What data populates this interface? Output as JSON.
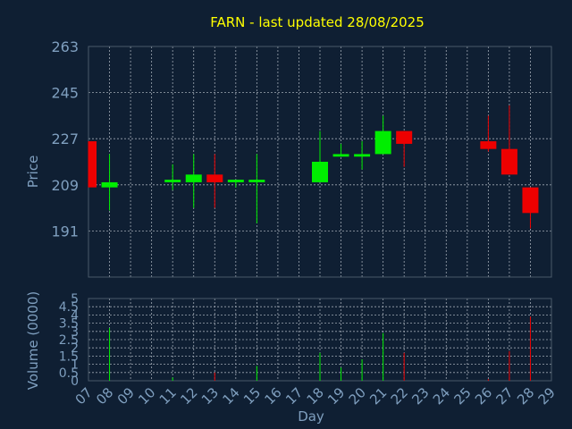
{
  "chart_data": {
    "type": "candlestick",
    "title": "FARN - last updated 28/08/2025",
    "xlabel": "Day",
    "ylabel": "Price",
    "volume_label": "Volume (0000)",
    "x_ticks": [
      "07",
      "08",
      "09",
      "10",
      "11",
      "12",
      "13",
      "14",
      "15",
      "16",
      "17",
      "18",
      "19",
      "20",
      "21",
      "22",
      "23",
      "24",
      "25",
      "26",
      "27",
      "28",
      "29"
    ],
    "price_ticks": [
      191,
      209,
      227,
      245,
      263
    ],
    "price_range": [
      173,
      263
    ],
    "volume_ticks": [
      "0",
      "0.5",
      "1",
      "1.5",
      "2",
      "2.5",
      "3",
      "3.5",
      "4",
      "4.5",
      "5"
    ],
    "volume_range": [
      0,
      5
    ],
    "grid": true,
    "colors": {
      "background": "#0f1f33",
      "title": "#ffff00",
      "axis_text": "#7f9fbf",
      "grid": "#9fa8b3",
      "frame": "#4a5a6a",
      "up": "#00ee00",
      "down": "#ee0000"
    },
    "candles": [
      {
        "day": "07",
        "open": 226,
        "high": 226,
        "low": 208,
        "close": 208,
        "volume": 0.0
      },
      {
        "day": "08",
        "open": 208,
        "high": 221,
        "low": 199,
        "close": 210,
        "volume": 3.2
      },
      {
        "day": "11",
        "open": 210,
        "high": 217,
        "low": 207,
        "close": 211,
        "volume": 0.2
      },
      {
        "day": "12",
        "open": 210,
        "high": 221,
        "low": 200,
        "close": 213,
        "volume": 0.0
      },
      {
        "day": "13",
        "open": 213,
        "high": 221,
        "low": 200,
        "close": 210,
        "volume": 0.5
      },
      {
        "day": "14",
        "open": 210,
        "high": 211,
        "low": 208,
        "close": 211,
        "volume": 0.0
      },
      {
        "day": "15",
        "open": 210,
        "high": 221,
        "low": 194,
        "close": 211,
        "volume": 0.9
      },
      {
        "day": "18",
        "open": 210,
        "high": 230,
        "low": 210,
        "close": 218,
        "volume": 1.7
      },
      {
        "day": "19",
        "open": 220,
        "high": 225,
        "low": 220,
        "close": 221,
        "volume": 0.8
      },
      {
        "day": "20",
        "open": 220,
        "high": 226,
        "low": 215,
        "close": 221,
        "volume": 1.3
      },
      {
        "day": "21",
        "open": 221,
        "high": 236,
        "low": 221,
        "close": 230,
        "volume": 2.9
      },
      {
        "day": "22",
        "open": 230,
        "high": 230,
        "low": 216,
        "close": 225,
        "volume": 1.7
      },
      {
        "day": "26",
        "open": 226,
        "high": 236,
        "low": 222,
        "close": 223,
        "volume": 0.1
      },
      {
        "day": "27",
        "open": 223,
        "high": 240,
        "low": 213,
        "close": 213,
        "volume": 1.8
      },
      {
        "day": "28",
        "open": 208,
        "high": 208,
        "low": 192,
        "close": 198,
        "volume": 3.9
      }
    ]
  }
}
